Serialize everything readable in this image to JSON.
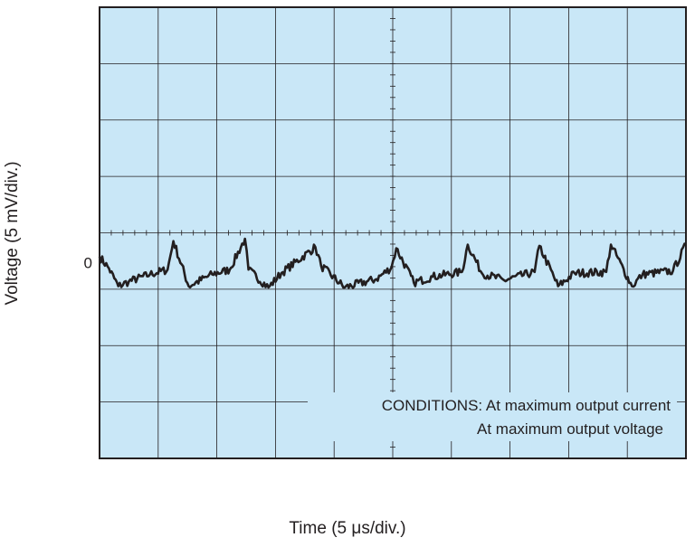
{
  "chart_data": {
    "type": "line",
    "title": "",
    "xlabel": "Time (5 μs/div.)",
    "ylabel": "Voltage (5 mV/div.)",
    "x_divisions": 10,
    "y_divisions": 8,
    "x_unit_per_div": "5 μs",
    "y_unit_per_div": "5 mV",
    "y_zero_label": "0",
    "xlim": [
      0,
      50
    ],
    "ylim": [
      -16.5,
      21.5
    ],
    "grid": true,
    "background_color": "#c9e7f7",
    "line_color": "#231f20",
    "annotations": [
      "CONDITIONS: At maximum output current",
      "At maximum output voltage"
    ],
    "series": [
      {
        "x": [
          0,
          0.8,
          1.6,
          2.5,
          4.3,
          5.8,
          6.3,
          7.6,
          9.6,
          11.1,
          12.4,
          12.7,
          14.4,
          15.5,
          18.4,
          18.9,
          20.9,
          23.6,
          24.9,
          25.3,
          26.8,
          28.4,
          30.9,
          31.4,
          32.6,
          34.5,
          37.1,
          37.5,
          39.1,
          40.5,
          43.2,
          43.6,
          45.4,
          46.3,
          48.9,
          50
        ],
        "y": [
          0.5,
          -0.5,
          -2.0,
          -1.6,
          -1.0,
          -0.6,
          1.8,
          -2.0,
          -1.0,
          -0.6,
          2.0,
          -0.6,
          -2.1,
          -0.9,
          1.3,
          -0.3,
          -2.1,
          -1.4,
          -0.4,
          1.2,
          -1.7,
          -1.2,
          -0.8,
          1.5,
          -0.9,
          -1.5,
          -0.8,
          1.4,
          -2.0,
          -0.9,
          -0.8,
          1.5,
          -2.0,
          -1.0,
          -0.7,
          1.5
        ]
      }
    ]
  }
}
